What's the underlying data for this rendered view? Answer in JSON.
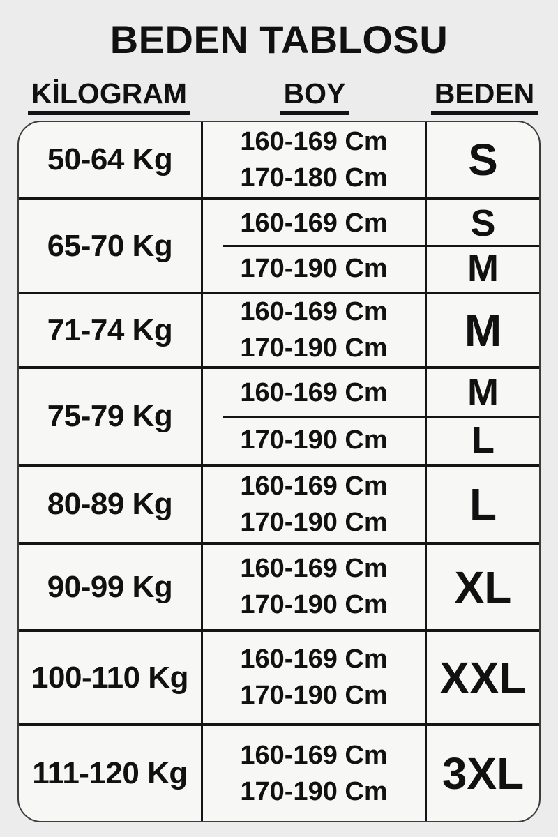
{
  "title": "BEDEN TABLOSU",
  "columns": {
    "kilogram": "KİLOGRAM",
    "boy": "BOY",
    "beden": "BEDEN"
  },
  "rows": [
    {
      "kg": "50-64 Kg",
      "boy": [
        "160-169 Cm",
        "170-180 Cm"
      ],
      "beden": [
        "S"
      ],
      "split": false
    },
    {
      "kg": "65-70 Kg",
      "boy": [
        "160-169 Cm",
        "170-190 Cm"
      ],
      "beden": [
        "S",
        "M"
      ],
      "split": true
    },
    {
      "kg": "71-74 Kg",
      "boy": [
        "160-169 Cm",
        "170-190 Cm"
      ],
      "beden": [
        "M"
      ],
      "split": false
    },
    {
      "kg": "75-79 Kg",
      "boy": [
        "160-169 Cm",
        "170-190 Cm"
      ],
      "beden": [
        "M",
        "L"
      ],
      "split": true
    },
    {
      "kg": "80-89 Kg",
      "boy": [
        "160-169 Cm",
        "170-190 Cm"
      ],
      "beden": [
        "L"
      ],
      "split": false
    },
    {
      "kg": "90-99 Kg",
      "boy": [
        "160-169 Cm",
        "170-190 Cm"
      ],
      "beden": [
        "XL"
      ],
      "split": false
    },
    {
      "kg": "100-110 Kg",
      "boy": [
        "160-169 Cm",
        "170-190 Cm"
      ],
      "beden": [
        "XXL"
      ],
      "split": false
    },
    {
      "kg": "111-120 Kg",
      "boy": [
        "160-169 Cm",
        "170-190 Cm"
      ],
      "beden": [
        "3XL"
      ],
      "split": false
    }
  ],
  "colors": {
    "background": "#ececec",
    "table_background": "#f7f7f6",
    "text": "#111111",
    "line": "#141414"
  }
}
